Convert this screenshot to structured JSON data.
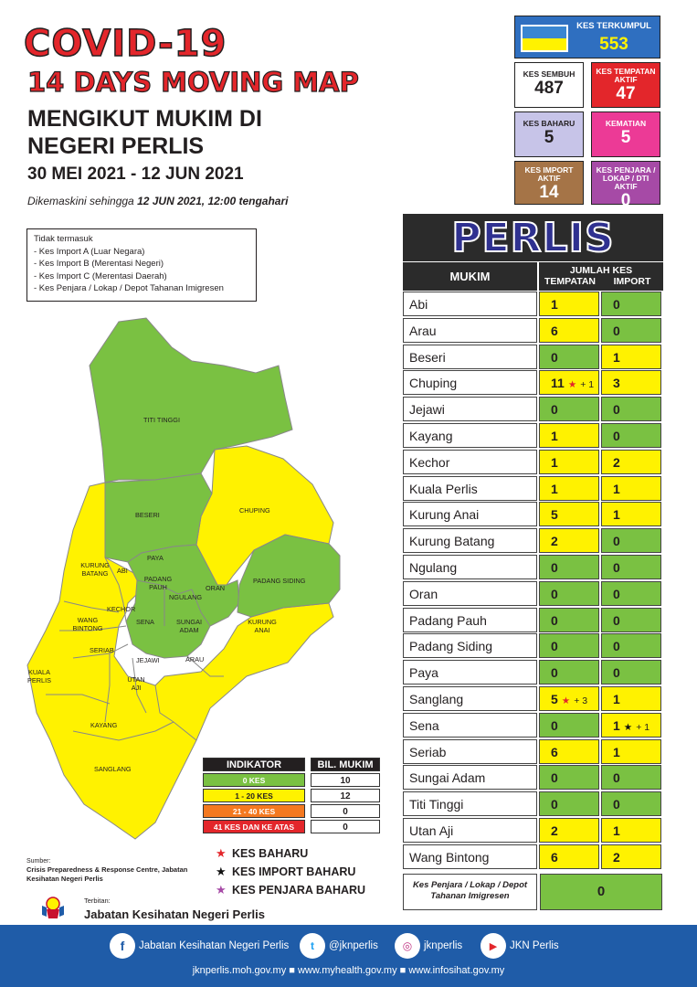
{
  "header": {
    "title": "COVID-19",
    "subtitle": "14 DAYS MOVING MAP",
    "line1": "MENGIKUT MUKIM DI",
    "line2": "NEGERI PERLIS",
    "date_range": "30 MEI 2021 - 12 JUN 2021",
    "updated_prefix": "Dikemaskini sehingga ",
    "updated_value": "12 JUN 2021, 12:00 tengahari"
  },
  "exclusions": {
    "title": "Tidak termasuk",
    "items": [
      "- Kes Import A (Luar Negara)",
      "- Kes Import B (Merentasi Negeri)",
      "- Kes Import C (Merentasi Daerah)",
      "- Kes Penjara / Lokap / Depot Tahanan Imigresen"
    ]
  },
  "stats": {
    "total": {
      "label": "KES TERKUMPUL",
      "value": "553"
    },
    "sembuh": {
      "label": "KES SEMBUH",
      "value": "487"
    },
    "aktif": {
      "label": "KES TEMPATAN AKTIF",
      "value": "47"
    },
    "baharu": {
      "label": "KES BAHARU",
      "value": "5"
    },
    "kematian": {
      "label": "KEMATIAN",
      "value": "5"
    },
    "import": {
      "label": "KES IMPORT AKTIF",
      "value": "14"
    },
    "penjara": {
      "label": "KES PENJARA / LOKAP / DTI AKTIF",
      "value": "0"
    }
  },
  "table": {
    "state": "PERLIS",
    "col_mukim": "MUKIM",
    "col_jumlah": "JUMLAH KES",
    "col_tempatan": "TEMPATAN",
    "col_import": "IMPORT",
    "rows": [
      {
        "name": "Abi",
        "tempatan": "1",
        "import": "0"
      },
      {
        "name": "Arau",
        "tempatan": "6",
        "import": "0"
      },
      {
        "name": "Beseri",
        "tempatan": "0",
        "import": "1"
      },
      {
        "name": "Chuping",
        "tempatan": "11",
        "import": "3",
        "tem_note": "+ 1",
        "tem_star": "red"
      },
      {
        "name": "Jejawi",
        "tempatan": "0",
        "import": "0"
      },
      {
        "name": "Kayang",
        "tempatan": "1",
        "import": "0"
      },
      {
        "name": "Kechor",
        "tempatan": "1",
        "import": "2"
      },
      {
        "name": "Kuala Perlis",
        "tempatan": "1",
        "import": "1"
      },
      {
        "name": "Kurung Anai",
        "tempatan": "5",
        "import": "1"
      },
      {
        "name": "Kurung Batang",
        "tempatan": "2",
        "import": "0"
      },
      {
        "name": "Ngulang",
        "tempatan": "0",
        "import": "0"
      },
      {
        "name": "Oran",
        "tempatan": "0",
        "import": "0"
      },
      {
        "name": "Padang Pauh",
        "tempatan": "0",
        "import": "0"
      },
      {
        "name": "Padang Siding",
        "tempatan": "0",
        "import": "0"
      },
      {
        "name": "Paya",
        "tempatan": "0",
        "import": "0"
      },
      {
        "name": "Sanglang",
        "tempatan": "5",
        "import": "1",
        "tem_note": "+ 3",
        "tem_star": "red"
      },
      {
        "name": "Sena",
        "tempatan": "0",
        "import": "1",
        "imp_note": "+ 1",
        "imp_star": "black"
      },
      {
        "name": "Seriab",
        "tempatan": "6",
        "import": "1"
      },
      {
        "name": "Sungai Adam",
        "tempatan": "0",
        "import": "0"
      },
      {
        "name": "Titi Tinggi",
        "tempatan": "0",
        "import": "0"
      },
      {
        "name": "Utan Aji",
        "tempatan": "2",
        "import": "1"
      },
      {
        "name": "Wang Bintong",
        "tempatan": "6",
        "import": "2"
      }
    ],
    "penjara_label": "Kes Penjara / Lokap / Depot Tahanan Imigresen",
    "penjara_value": "0"
  },
  "map": {
    "labels": {
      "titi_tinggi": "TITI TINGGI",
      "beseri": "BESERI",
      "chuping": "CHUPING",
      "paya": "PAYA",
      "kurung_batang": "KURUNG BATANG",
      "abi": "ABI",
      "padang_pauh": "PADANG PAUH",
      "ngulang": "NGULANG",
      "oran": "ORAN",
      "padang_siding": "PADANG SIDING",
      "kechor": "KECHOR",
      "wang_bintong": "WANG BINTONG",
      "sena": "SENA",
      "sungai_adam": "SUNGAI ADAM",
      "kurung_anai": "KURUNG ANAI",
      "seriab": "SERIAB",
      "jejawi": "JEJAWI",
      "arau": "ARAU",
      "kuala_perlis": "KUALA PERLIS",
      "utan_aji": "UTAN AJI",
      "kayang": "KAYANG",
      "sanglang": "SANGLANG"
    },
    "colors": {
      "green": "#7ac142",
      "yellow": "#fff200",
      "orange": "#f47920",
      "red": "#e3262b"
    }
  },
  "indicator": {
    "col_indikator": "INDIKATOR",
    "col_bil": "BIL. MUKIM",
    "rows": [
      {
        "label": "0 KES",
        "value": "10"
      },
      {
        "label": "1 - 20 KES",
        "value": "12"
      },
      {
        "label": "21 - 40 KES",
        "value": "0"
      },
      {
        "label": "41 KES DAN KE ATAS",
        "value": "0"
      }
    ]
  },
  "legend": {
    "kes_baharu": "KES BAHARU",
    "kes_import_baharu": "KES IMPORT BAHARU",
    "kes_penjara_baharu": "KES PENJARA BAHARU"
  },
  "source": {
    "label": "Sumber:",
    "text": "Crisis Preparedness & Response Centre, Jabatan Kesihatan Negeri Perlis"
  },
  "publisher": {
    "label": "Terbitan:",
    "name": "Jabatan Kesihatan Negeri Perlis"
  },
  "footer": {
    "facebook": "Jabatan Kesihatan Negeri Perlis",
    "twitter": "@jknperlis",
    "instagram": "jknperlis",
    "youtube": "JKN Perlis",
    "links": "jknperlis.moh.gov.my ■ www.myhealth.gov.my ■ www.infosihat.gov.my"
  }
}
